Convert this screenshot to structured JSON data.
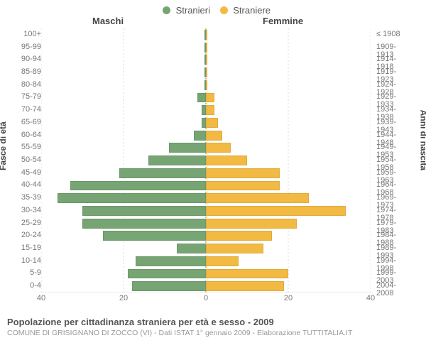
{
  "legend": {
    "male": {
      "label": "Stranieri",
      "color": "#76a473"
    },
    "female": {
      "label": "Straniere",
      "color": "#f2ba43"
    }
  },
  "section_titles": {
    "male": "Maschi",
    "female": "Femmine"
  },
  "axis_titles": {
    "left": "Fasce di età",
    "right": "Anni di nascita"
  },
  "chart": {
    "type": "population-pyramid",
    "xmax": 40,
    "xtick_step": 20,
    "grid_color": "#d9d9d9",
    "center_color": "#bca24a",
    "row_height_pct": 4.76,
    "bars": [
      {
        "age": "0-4",
        "year": "2004-2008",
        "male": 18,
        "female": 19
      },
      {
        "age": "5-9",
        "year": "1999-2003",
        "male": 19,
        "female": 20
      },
      {
        "age": "10-14",
        "year": "1994-1998",
        "male": 17,
        "female": 8
      },
      {
        "age": "15-19",
        "year": "1989-1993",
        "male": 7,
        "female": 14
      },
      {
        "age": "20-24",
        "year": "1984-1988",
        "male": 25,
        "female": 16
      },
      {
        "age": "25-29",
        "year": "1979-1983",
        "male": 30,
        "female": 22
      },
      {
        "age": "30-34",
        "year": "1974-1978",
        "male": 30,
        "female": 34
      },
      {
        "age": "35-39",
        "year": "1969-1973",
        "male": 36,
        "female": 25
      },
      {
        "age": "40-44",
        "year": "1964-1968",
        "male": 33,
        "female": 18
      },
      {
        "age": "45-49",
        "year": "1959-1963",
        "male": 21,
        "female": 18
      },
      {
        "age": "50-54",
        "year": "1954-1958",
        "male": 14,
        "female": 10
      },
      {
        "age": "55-59",
        "year": "1949-1953",
        "male": 9,
        "female": 6
      },
      {
        "age": "60-64",
        "year": "1944-1948",
        "male": 3,
        "female": 4
      },
      {
        "age": "65-69",
        "year": "1939-1943",
        "male": 1,
        "female": 3
      },
      {
        "age": "70-74",
        "year": "1934-1938",
        "male": 1,
        "female": 2
      },
      {
        "age": "75-79",
        "year": "1929-1933",
        "male": 2,
        "female": 2
      },
      {
        "age": "80-84",
        "year": "1924-1928",
        "male": 0,
        "female": 0
      },
      {
        "age": "85-89",
        "year": "1919-1923",
        "male": 0,
        "female": 0
      },
      {
        "age": "90-94",
        "year": "1914-1918",
        "male": 0,
        "female": 0
      },
      {
        "age": "95-99",
        "year": "1909-1913",
        "male": 0,
        "female": 0
      },
      {
        "age": "100+",
        "year": "≤ 1908",
        "male": 0,
        "female": 0
      }
    ]
  },
  "xaxis_ticks": [
    "40",
    "20",
    "0",
    "20",
    "40"
  ],
  "footer": {
    "title": "Popolazione per cittadinanza straniera per età e sesso - 2009",
    "sub": "COMUNE DI GRISIGNANO DI ZOCCO (VI) - Dati ISTAT 1° gennaio 2009 - Elaborazione TUTTITALIA.IT"
  }
}
